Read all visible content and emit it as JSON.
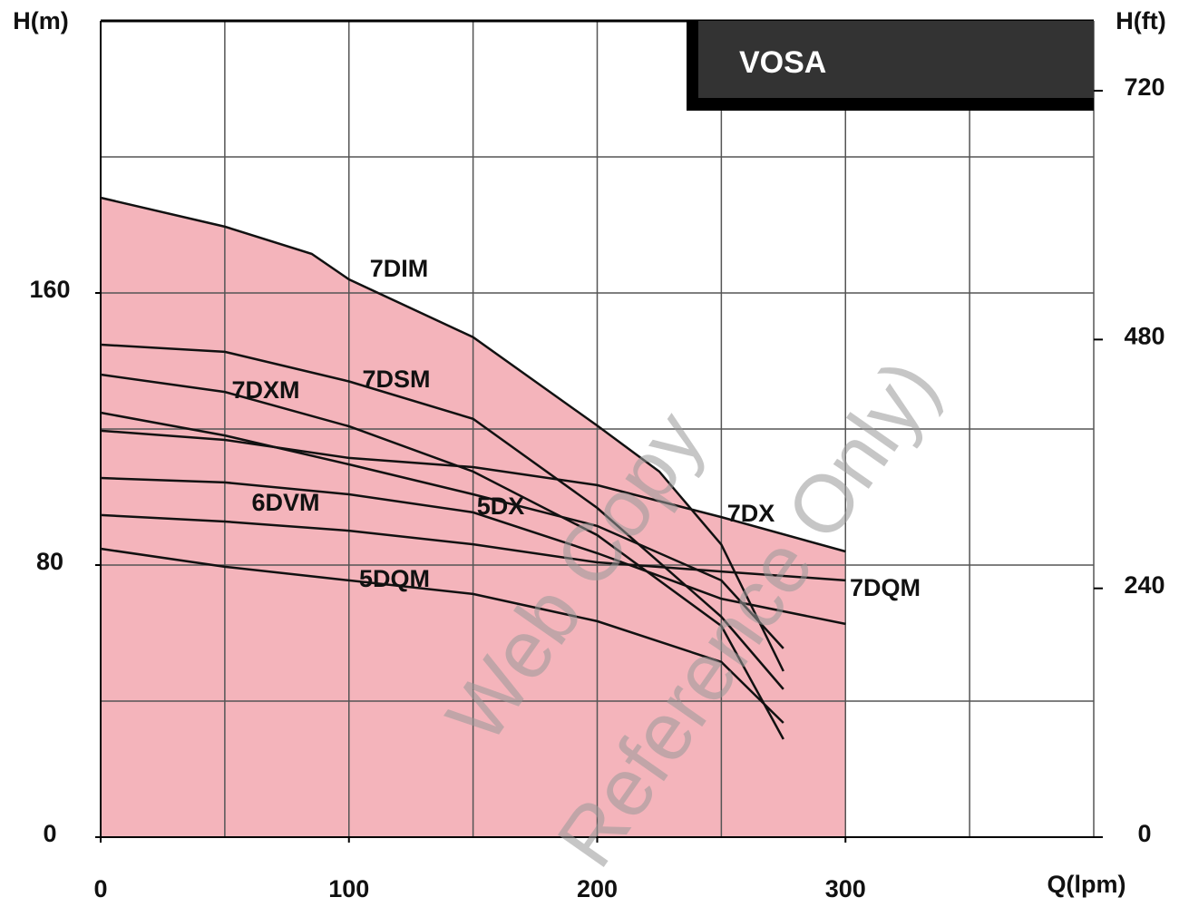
{
  "chart_data": {
    "type": "line",
    "title": "VOSA",
    "x_label": "Q(lpm)",
    "y_label": "H(m)",
    "y2_label": "H(ft)",
    "watermarks": [
      "Web Copy",
      "Reference Only)"
    ],
    "xlim": [
      0,
      400
    ],
    "xticks": [
      0,
      100,
      200,
      300
    ],
    "ylim": [
      0,
      240
    ],
    "yticks": [
      0,
      80,
      160
    ],
    "y2lim": [
      0,
      787.4
    ],
    "y2ticks": [
      0,
      240,
      480,
      720
    ],
    "grid": true,
    "area_color": "#f4b4bb",
    "series": [
      {
        "name": "7DIM",
        "color": "#111111",
        "x": [
          0,
          50,
          85,
          100,
          150,
          200,
          225,
          250,
          275
        ],
        "values": [
          188,
          179.5,
          171.5,
          164,
          147,
          121,
          107.5,
          86,
          48.8
        ]
      },
      {
        "name": "7DSM",
        "color": "#111111",
        "x": [
          0,
          50,
          100,
          150,
          200,
          250,
          275
        ],
        "values": [
          144.8,
          142.7,
          134,
          123,
          96.8,
          64.8,
          43.5
        ]
      },
      {
        "name": "7DXM",
        "color": "#111111",
        "x": [
          0,
          50,
          100,
          150,
          200,
          250,
          275
        ],
        "values": [
          136,
          130.9,
          120.8,
          107.5,
          88.8,
          62.1,
          28.8
        ]
      },
      {
        "name": "5DX",
        "color": "#111111",
        "x": [
          0,
          50,
          100,
          150,
          200,
          250,
          275
        ],
        "values": [
          124.8,
          118.1,
          109.6,
          100.8,
          91.5,
          75.5,
          55.5
        ]
      },
      {
        "name": "7DX",
        "color": "#111111",
        "x": [
          0,
          50,
          100,
          150,
          200,
          250,
          300
        ],
        "values": [
          119.5,
          116.8,
          111.5,
          108.8,
          103.5,
          94.1,
          84
        ]
      },
      {
        "name": "6DVM",
        "color": "#111111",
        "x": [
          0,
          50,
          100,
          150,
          200,
          250,
          300
        ],
        "values": [
          105.6,
          104.3,
          100.8,
          95.5,
          83.5,
          70.1,
          62.7
        ]
      },
      {
        "name": "7DQM",
        "color": "#111111",
        "x": [
          0,
          50,
          100,
          150,
          200,
          250,
          300
        ],
        "values": [
          94.7,
          92.8,
          90.1,
          86.1,
          80.8,
          78.1,
          75.5
        ]
      },
      {
        "name": "5DQM",
        "color": "#111111",
        "x": [
          0,
          50,
          100,
          150,
          200,
          250,
          275
        ],
        "values": [
          84.8,
          79.5,
          75.5,
          71.5,
          63.5,
          51.5,
          33.6
        ]
      }
    ]
  }
}
